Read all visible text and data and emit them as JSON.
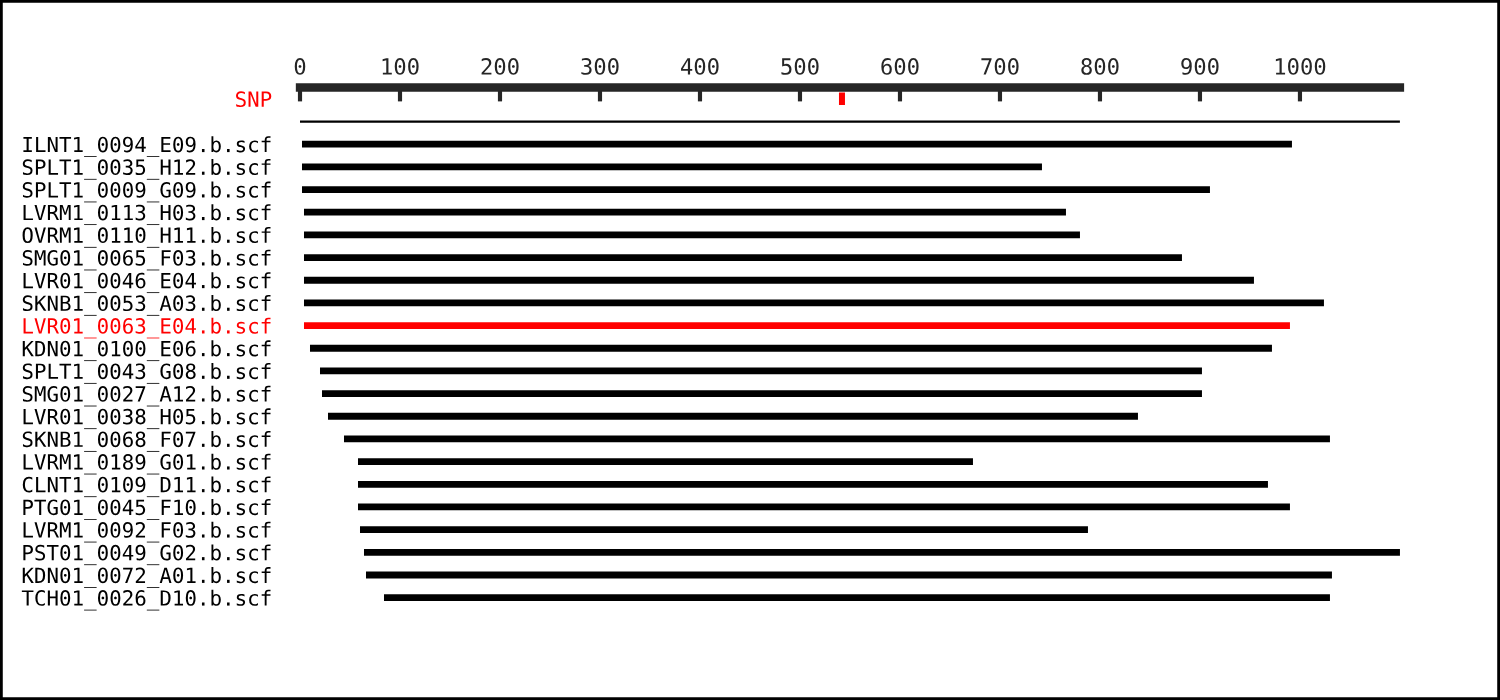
{
  "chart_data": {
    "type": "bar",
    "orientation": "horizontal",
    "categories": [
      "SNP",
      null,
      "ILNT1_0094_E09.b.scf",
      "SPLT1_0035_H12.b.scf",
      "SPLT1_0009_G09.b.scf",
      "LVRM1_0113_H03.b.scf",
      "OVRM1_0110_H11.b.scf",
      "SMG01_0065_F03.b.scf",
      "LVR01_0046_E04.b.scf",
      "SKNB1_0053_A03.b.scf",
      "LVR01_0063_E04.b.scf",
      "KDN01_0100_E06.b.scf",
      "SPLT1_0043_G08.b.scf",
      "SMG01_0027_A12.b.scf",
      "LVR01_0038_H05.b.scf",
      "SKNB1_0068_F07.b.scf",
      "LVRM1_0189_G01.b.scf",
      "CLNT1_0109_D11.b.scf",
      "PTG01_0045_F10.b.scf",
      "LVRM1_0092_F03.b.scf",
      "PST01_0049_G02.b.scf",
      "KDN01_0072_A01.b.scf",
      "TCH01_0026_D10.b.scf"
    ],
    "base": [
      539,
      0,
      2,
      2,
      2,
      4,
      4,
      4,
      4,
      4,
      4,
      10,
      20,
      22,
      28,
      44,
      58,
      58,
      58,
      60,
      64,
      66,
      84
    ],
    "values": [
      6,
      1100,
      990,
      740,
      908,
      762,
      776,
      878,
      950,
      1020,
      986,
      962,
      882,
      880,
      810,
      986,
      615,
      910,
      932,
      728,
      1038,
      966,
      946
    ],
    "colors": [
      "#ff0000",
      "#000000",
      "#000000",
      "#000000",
      "#000000",
      "#000000",
      "#000000",
      "#000000",
      "#000000",
      "#000000",
      "#ff0000",
      "#000000",
      "#000000",
      "#000000",
      "#000000",
      "#000000",
      "#000000",
      "#000000",
      "#000000",
      "#000000",
      "#000000",
      "#000000",
      "#000000"
    ],
    "xlim": [
      0,
      1100
    ],
    "xticks": [
      0,
      100,
      200,
      300,
      400,
      500,
      600,
      700,
      800,
      900,
      1000
    ],
    "grid": false,
    "legend": false
  }
}
